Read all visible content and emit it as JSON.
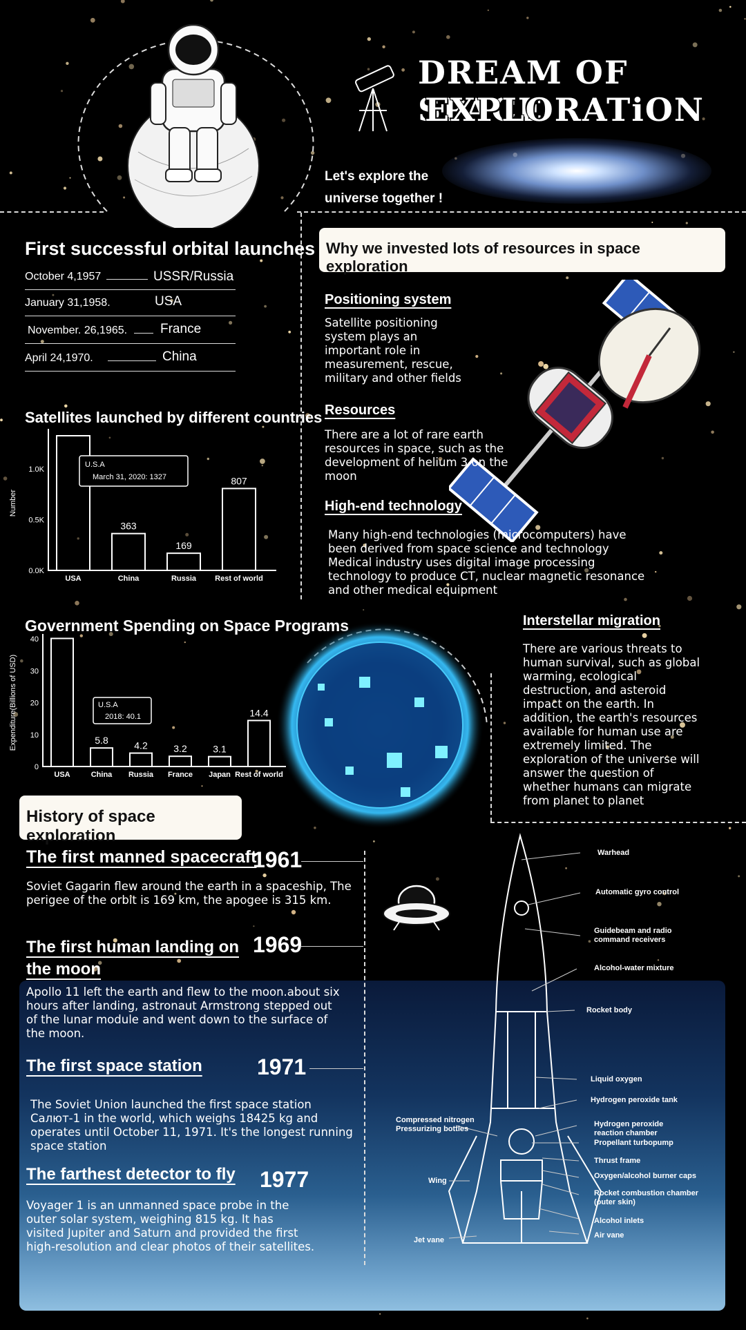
{
  "header": {
    "title_line1": "DREAM OF SPACE",
    "title_line2": "EXPLORATiON",
    "tagline_line1": "Let's explore the",
    "tagline_line2": "universe together !"
  },
  "launches": {
    "heading": "First successful orbital launches",
    "rows": [
      {
        "date": "October 4,1957",
        "country": "USSR/Russia"
      },
      {
        "date": "January 31,1958.",
        "country": "USA"
      },
      {
        "date": "November. 26,1965.",
        "country": "France"
      },
      {
        "date": "April 24,1970.",
        "country": "China"
      }
    ]
  },
  "why": {
    "heading": "Why we invested lots of resources in space exploration",
    "positioning": {
      "title": "Positioning system",
      "text": [
        "Satellite positioning",
        "system plays an",
        "important role in",
        "measurement, rescue,",
        "military and other fields"
      ]
    },
    "resources": {
      "title": "Resources",
      "text": [
        "There are a lot of rare earth",
        "resources in space, such as the",
        "development of helium 3 on the",
        "moon"
      ]
    },
    "tech": {
      "title": "High-end technology",
      "text": [
        "Many high-end technologies (microcomputers) have",
        "been derived from space science and technology",
        "Medical industry uses digital image processing",
        "technology to produce CT, nuclear magnetic resonance",
        "and other medical equipment"
      ]
    },
    "migration": {
      "title": "Interstellar migration",
      "text": [
        "There are various threats to",
        "human survival, such as global",
        "warming, ecological",
        "destruction, and asteroid",
        "impact on the earth. In",
        "addition, the earth's resources",
        "available for human use are",
        "extremely limited. The",
        "exploration of the universe will",
        "answer the question of",
        "whether humans can migrate",
        "from planet to planet"
      ]
    }
  },
  "chart_data": [
    {
      "type": "bar",
      "title": "Satellites launched by different countries",
      "ylabel": "Number",
      "categories": [
        "USA",
        "China",
        "Russia",
        "Rest of world"
      ],
      "values": [
        1327,
        363,
        169,
        807
      ],
      "value_labels": [
        "",
        "363",
        "169",
        "807"
      ],
      "yticks": [
        "0.0K",
        "0.5K",
        "1.0K"
      ],
      "ylim": [
        0,
        1327
      ],
      "annotation_line1": "U.S.A",
      "annotation_line2": "March 31, 2020: 1327"
    },
    {
      "type": "bar",
      "title": "Government Spending on Space Programs",
      "ylabel": "Expenditure(Billions of USD)",
      "categories": [
        "USA",
        "China",
        "Russia",
        "France",
        "Japan",
        "Rest of world"
      ],
      "values": [
        40.1,
        5.8,
        4.2,
        3.2,
        3.1,
        14.4
      ],
      "value_labels": [
        "",
        "5.8",
        "4.2",
        "3.2",
        "3.1",
        "14.4"
      ],
      "yticks": [
        "0",
        "10",
        "20",
        "30",
        "40"
      ],
      "ylim": [
        0,
        40
      ],
      "annotation_line1": "U.S.A",
      "annotation_line2": "2018: 40.1"
    }
  ],
  "history": {
    "heading": "History of space exploration",
    "events": [
      {
        "title": "The first manned spacecraft",
        "year": "1961",
        "text": [
          "Soviet Gagarin flew around the earth in a spaceship, The",
          "perigee of the orbit is 169 km, the apogee is 315 km."
        ]
      },
      {
        "title_line1": "The first human landing on",
        "title_line2": "the moon",
        "year": "1969",
        "text": [
          "Apollo 11 left the earth and flew to the moon.about six",
          "hours after landing, astronaut Armstrong stepped out",
          "of the lunar module and went down to the surface of",
          "the moon."
        ]
      },
      {
        "title": "The first space station",
        "year": "1971",
        "text": [
          "The Soviet Union launched the first space station",
          "Салют-1 in the world, which weighs 18425 kg and",
          "operates until October 11, 1971. It's the longest running",
          "space station"
        ]
      },
      {
        "title": "The farthest detector to fly",
        "year": "1977",
        "text": [
          "Voyager 1 is an unmanned space probe in the",
          "outer solar system, weighing 815 kg. It has",
          "visited Jupiter and Saturn and provided the first",
          "high-resolution and clear photos of their satellites."
        ]
      }
    ]
  },
  "rocket_labels": {
    "warhead": "Warhead",
    "gyro": "Automatic gyro control",
    "guidebeam1": "Guidebeam and radio",
    "guidebeam2": "command receivers",
    "alcohol_water": "Alcohol-water mixture",
    "rocket_body": "Rocket body",
    "liquid_oxygen": "Liquid oxygen",
    "h2o2_tank": "Hydrogen peroxide tank",
    "h2o2_chamber1": "Hydrogen peroxide",
    "h2o2_chamber2": "reaction chamber",
    "turbopump": "Propellant turbopump",
    "thrust_frame": "Thrust frame",
    "burner_caps": "Oxygen/alcohol burner caps",
    "combustion1": "Rocket combustion chamber",
    "combustion2": "(outer skin)",
    "alcohol_inlets": "Alcohol inlets",
    "air_vane": "Air vane",
    "nitrogen1": "Compressed nitrogen",
    "nitrogen2": "Pressurizing bottles",
    "wing": "Wing",
    "jet_vane": "Jet vane"
  }
}
